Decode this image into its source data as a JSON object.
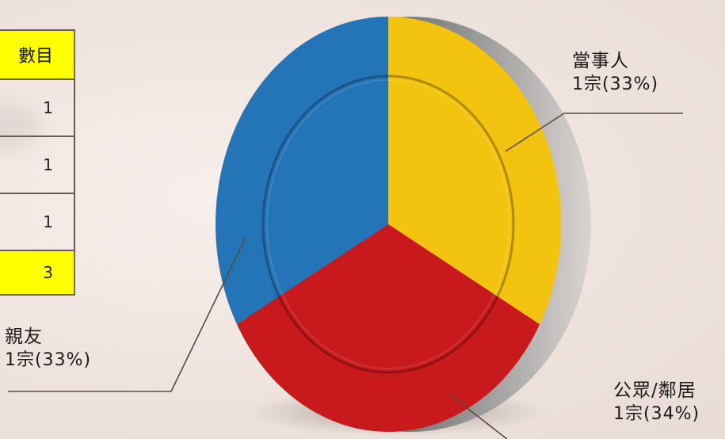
{
  "table": {
    "header": "數目",
    "rows": [
      "1",
      "1",
      "1"
    ],
    "total": "3"
  },
  "chart_data": {
    "type": "pie",
    "title": "",
    "slices": [
      {
        "label": "當事人",
        "count_text": "1宗(33%)",
        "value": 33,
        "color": "#f2c30f"
      },
      {
        "label": "公眾/鄰居",
        "count_text": "1宗(34%)",
        "value": 34,
        "color": "#c8191c"
      },
      {
        "label": "親友",
        "count_text": "1宗(33%)",
        "value": 33,
        "color": "#2474b8"
      }
    ]
  }
}
